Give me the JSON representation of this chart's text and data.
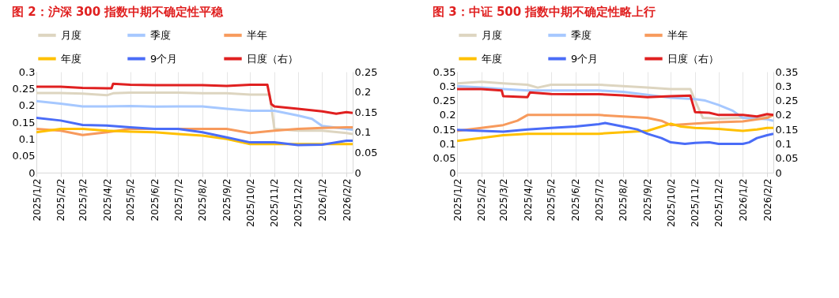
{
  "chart_data": [
    {
      "type": "line",
      "title": "图 2：沪深 300 指数中期不确定性平稳",
      "legend": "top",
      "grid": "x",
      "xlim": [
        "2025-01-02",
        "2026-02-10"
      ],
      "xticks": [
        {
          "value": "2025-01-02",
          "label": "2025/1/2"
        },
        {
          "value": "2025-02-02",
          "label": "2025/2/2"
        },
        {
          "value": "2025-03-02",
          "label": "2025/3/2"
        },
        {
          "value": "2025-04-02",
          "label": "2025/4/2"
        },
        {
          "value": "2025-05-02",
          "label": "2025/5/2"
        },
        {
          "value": "2025-06-02",
          "label": "2025/6/2"
        },
        {
          "value": "2025-07-02",
          "label": "2025/7/2"
        },
        {
          "value": "2025-08-02",
          "label": "2025/8/2"
        },
        {
          "value": "2025-09-02",
          "label": "2025/9/2"
        },
        {
          "value": "2025-10-02",
          "label": "2025/10/2"
        },
        {
          "value": "2025-11-02",
          "label": "2025/11/2"
        },
        {
          "value": "2025-12-02",
          "label": "2025/12/2"
        },
        {
          "value": "2026-01-02",
          "label": "2026/1/2"
        },
        {
          "value": "2026-02-02",
          "label": "2026/2/2"
        }
      ],
      "ylim": [
        0,
        0.3
      ],
      "yticks": [
        0,
        0.05,
        0.1,
        0.15,
        0.2,
        0.25,
        0.3
      ],
      "y2lim": [
        0,
        0.25
      ],
      "y2ticks": [
        0,
        0.05,
        0.1,
        0.15,
        0.2,
        0.25
      ],
      "series": [
        {
          "name": "月度",
          "color": "#ddd5c0",
          "x": [
            "2025-01-02",
            "2025-02-02",
            "2025-03-02",
            "2025-04-02",
            "2025-04-10",
            "2025-05-02",
            "2025-06-02",
            "2025-07-02",
            "2025-08-02",
            "2025-09-02",
            "2025-10-02",
            "2025-10-27",
            "2025-11-02",
            "2025-12-02",
            "2026-01-02",
            "2026-02-02",
            "2026-02-10"
          ],
          "values": [
            0.237,
            0.237,
            0.235,
            0.23,
            0.236,
            0.238,
            0.238,
            0.238,
            0.236,
            0.236,
            0.232,
            0.232,
            0.13,
            0.125,
            0.125,
            0.118,
            0.115
          ]
        },
        {
          "name": "季度",
          "color": "#a6c8ff",
          "x": [
            "2025-01-02",
            "2025-02-02",
            "2025-03-02",
            "2025-04-02",
            "2025-05-02",
            "2025-06-02",
            "2025-07-02",
            "2025-08-02",
            "2025-09-02",
            "2025-10-02",
            "2025-11-02",
            "2025-12-02",
            "2025-12-20",
            "2026-01-02",
            "2026-02-02",
            "2026-02-10"
          ],
          "values": [
            0.213,
            0.205,
            0.197,
            0.197,
            0.198,
            0.196,
            0.197,
            0.197,
            0.19,
            0.184,
            0.184,
            0.17,
            0.16,
            0.139,
            0.13,
            0.128
          ]
        },
        {
          "name": "半年",
          "color": "#f79a5c",
          "x": [
            "2025-01-02",
            "2025-02-02",
            "2025-03-02",
            "2025-04-02",
            "2025-05-02",
            "2025-06-02",
            "2025-07-02",
            "2025-08-02",
            "2025-09-02",
            "2025-10-02",
            "2025-11-02",
            "2025-12-02",
            "2026-01-02",
            "2026-02-02",
            "2026-02-10"
          ],
          "values": [
            0.13,
            0.125,
            0.112,
            0.12,
            0.13,
            0.13,
            0.13,
            0.13,
            0.13,
            0.118,
            0.125,
            0.13,
            0.133,
            0.135,
            0.135
          ]
        },
        {
          "name": "年度",
          "color": "#ffc000",
          "x": [
            "2025-01-02",
            "2025-02-02",
            "2025-03-02",
            "2025-04-02",
            "2025-05-02",
            "2025-06-02",
            "2025-07-02",
            "2025-08-02",
            "2025-09-02",
            "2025-10-02",
            "2025-11-02",
            "2025-12-02",
            "2026-01-02",
            "2026-02-02",
            "2026-02-10"
          ],
          "values": [
            0.12,
            0.13,
            0.13,
            0.125,
            0.122,
            0.12,
            0.115,
            0.11,
            0.1,
            0.085,
            0.085,
            0.085,
            0.085,
            0.085,
            0.085
          ]
        },
        {
          "name": "9个月",
          "color": "#4a6cf7",
          "x": [
            "2025-01-02",
            "2025-02-02",
            "2025-03-02",
            "2025-04-02",
            "2025-05-02",
            "2025-06-02",
            "2025-07-02",
            "2025-08-02",
            "2025-09-02",
            "2025-10-02",
            "2025-11-02",
            "2025-12-02",
            "2026-01-02",
            "2026-02-02",
            "2026-02-10"
          ],
          "values": [
            0.163,
            0.155,
            0.142,
            0.14,
            0.135,
            0.13,
            0.13,
            0.12,
            0.105,
            0.09,
            0.09,
            0.082,
            0.083,
            0.095,
            0.095
          ]
        },
        {
          "name": "日度（右）",
          "color": "#e02020",
          "axis": "y2",
          "x": [
            "2025-01-02",
            "2025-02-02",
            "2025-03-02",
            "2025-04-02",
            "2025-04-08",
            "2025-04-10",
            "2025-05-02",
            "2025-06-02",
            "2025-07-02",
            "2025-08-02",
            "2025-09-02",
            "2025-10-02",
            "2025-10-24",
            "2025-10-29",
            "2025-11-02",
            "2025-12-02",
            "2026-01-02",
            "2026-01-20",
            "2026-02-02",
            "2026-02-10"
          ],
          "values": [
            0.213,
            0.213,
            0.21,
            0.209,
            0.209,
            0.22,
            0.218,
            0.217,
            0.217,
            0.217,
            0.215,
            0.218,
            0.218,
            0.17,
            0.164,
            0.158,
            0.152,
            0.146,
            0.15,
            0.148
          ]
        }
      ]
    },
    {
      "type": "line",
      "title": "图 3：中证 500 指数中期不确定性略上行",
      "legend": "top",
      "grid": "x",
      "xlim": [
        "2025-01-02",
        "2026-02-10"
      ],
      "xticks": [
        {
          "value": "2025-01-02",
          "label": "2025/1/2"
        },
        {
          "value": "2025-02-02",
          "label": "2025/2/2"
        },
        {
          "value": "2025-03-02",
          "label": "2025/3/2"
        },
        {
          "value": "2025-04-02",
          "label": "2025/4/2"
        },
        {
          "value": "2025-05-02",
          "label": "2025/5/2"
        },
        {
          "value": "2025-06-02",
          "label": "2025/6/2"
        },
        {
          "value": "2025-07-02",
          "label": "2025/7/2"
        },
        {
          "value": "2025-08-02",
          "label": "2025/8/2"
        },
        {
          "value": "2025-09-02",
          "label": "2025/9/2"
        },
        {
          "value": "2025-10-02",
          "label": "2025/10/2"
        },
        {
          "value": "2025-11-02",
          "label": "2025/11/2"
        },
        {
          "value": "2025-12-02",
          "label": "2025/12/2"
        },
        {
          "value": "2026-01-02",
          "label": "2026/1/2"
        },
        {
          "value": "2026-02-02",
          "label": "2026/2/2"
        }
      ],
      "ylim": [
        0,
        0.35
      ],
      "yticks": [
        0,
        0.05,
        0.1,
        0.15,
        0.2,
        0.25,
        0.3,
        0.35
      ],
      "y2lim": [
        0,
        0.35
      ],
      "y2ticks": [
        0,
        0.05,
        0.1,
        0.15,
        0.2,
        0.25,
        0.3,
        0.35
      ],
      "series": [
        {
          "name": "月度",
          "color": "#ddd5c0",
          "x": [
            "2025-01-02",
            "2025-02-02",
            "2025-03-02",
            "2025-04-02",
            "2025-04-15",
            "2025-05-02",
            "2025-06-02",
            "2025-07-02",
            "2025-08-02",
            "2025-09-02",
            "2025-10-02",
            "2025-10-27",
            "2025-11-02",
            "2025-11-12",
            "2025-12-02",
            "2026-01-02",
            "2026-02-02",
            "2026-02-10"
          ],
          "values": [
            0.31,
            0.315,
            0.31,
            0.305,
            0.295,
            0.305,
            0.305,
            0.305,
            0.3,
            0.295,
            0.29,
            0.29,
            0.25,
            0.19,
            0.187,
            0.19,
            0.195,
            0.2
          ]
        },
        {
          "name": "季度",
          "color": "#a6c8ff",
          "x": [
            "2025-01-02",
            "2025-02-02",
            "2025-03-02",
            "2025-04-02",
            "2025-05-02",
            "2025-06-02",
            "2025-07-02",
            "2025-08-02",
            "2025-09-02",
            "2025-10-02",
            "2025-11-02",
            "2025-11-15",
            "2025-12-02",
            "2025-12-20",
            "2026-01-02",
            "2026-02-02",
            "2026-02-10"
          ],
          "values": [
            0.3,
            0.295,
            0.29,
            0.285,
            0.285,
            0.285,
            0.285,
            0.28,
            0.27,
            0.26,
            0.255,
            0.25,
            0.235,
            0.215,
            0.19,
            0.185,
            0.18
          ]
        },
        {
          "name": "半年",
          "color": "#f79a5c",
          "x": [
            "2025-01-02",
            "2025-02-02",
            "2025-03-02",
            "2025-03-20",
            "2025-04-02",
            "2025-05-02",
            "2025-06-02",
            "2025-07-02",
            "2025-08-02",
            "2025-09-02",
            "2025-09-20",
            "2025-10-02",
            "2025-11-02",
            "2025-12-02",
            "2026-01-02",
            "2026-02-02",
            "2026-02-10"
          ],
          "values": [
            0.145,
            0.155,
            0.165,
            0.18,
            0.2,
            0.2,
            0.2,
            0.2,
            0.195,
            0.19,
            0.18,
            0.165,
            0.17,
            0.175,
            0.178,
            0.19,
            0.2
          ]
        },
        {
          "name": "年度",
          "color": "#ffc000",
          "x": [
            "2025-01-02",
            "2025-02-02",
            "2025-03-02",
            "2025-04-02",
            "2025-05-02",
            "2025-06-02",
            "2025-07-02",
            "2025-08-02",
            "2025-09-02",
            "2025-09-20",
            "2025-10-02",
            "2025-10-15",
            "2025-11-02",
            "2025-12-02",
            "2026-01-02",
            "2026-01-20",
            "2026-02-02",
            "2026-02-10"
          ],
          "values": [
            0.11,
            0.12,
            0.13,
            0.135,
            0.135,
            0.135,
            0.135,
            0.14,
            0.145,
            0.16,
            0.17,
            0.16,
            0.155,
            0.152,
            0.145,
            0.15,
            0.155,
            0.155
          ]
        },
        {
          "name": "9个月",
          "color": "#4a6cf7",
          "x": [
            "2025-01-02",
            "2025-02-02",
            "2025-03-02",
            "2025-04-02",
            "2025-05-02",
            "2025-06-02",
            "2025-07-02",
            "2025-07-10",
            "2025-08-02",
            "2025-08-20",
            "2025-09-02",
            "2025-09-20",
            "2025-10-02",
            "2025-10-20",
            "2025-11-02",
            "2025-11-20",
            "2025-12-02",
            "2026-01-02",
            "2026-01-10",
            "2026-01-20",
            "2026-02-02",
            "2026-02-10"
          ],
          "values": [
            0.148,
            0.145,
            0.142,
            0.15,
            0.155,
            0.16,
            0.168,
            0.172,
            0.16,
            0.15,
            0.135,
            0.12,
            0.105,
            0.1,
            0.103,
            0.105,
            0.1,
            0.1,
            0.105,
            0.12,
            0.13,
            0.135
          ]
        },
        {
          "name": "日度（右）",
          "color": "#e02020",
          "axis": "y2",
          "x": [
            "2025-01-02",
            "2025-02-02",
            "2025-02-28",
            "2025-03-02",
            "2025-04-02",
            "2025-04-05",
            "2025-05-02",
            "2025-06-02",
            "2025-07-02",
            "2025-08-02",
            "2025-09-02",
            "2025-10-02",
            "2025-10-27",
            "2025-11-02",
            "2025-11-20",
            "2025-12-02",
            "2026-01-02",
            "2026-01-20",
            "2026-02-02",
            "2026-02-10"
          ],
          "values": [
            0.29,
            0.29,
            0.285,
            0.265,
            0.262,
            0.278,
            0.273,
            0.272,
            0.272,
            0.268,
            0.262,
            0.265,
            0.267,
            0.21,
            0.208,
            0.2,
            0.2,
            0.195,
            0.203,
            0.2
          ]
        }
      ]
    }
  ]
}
